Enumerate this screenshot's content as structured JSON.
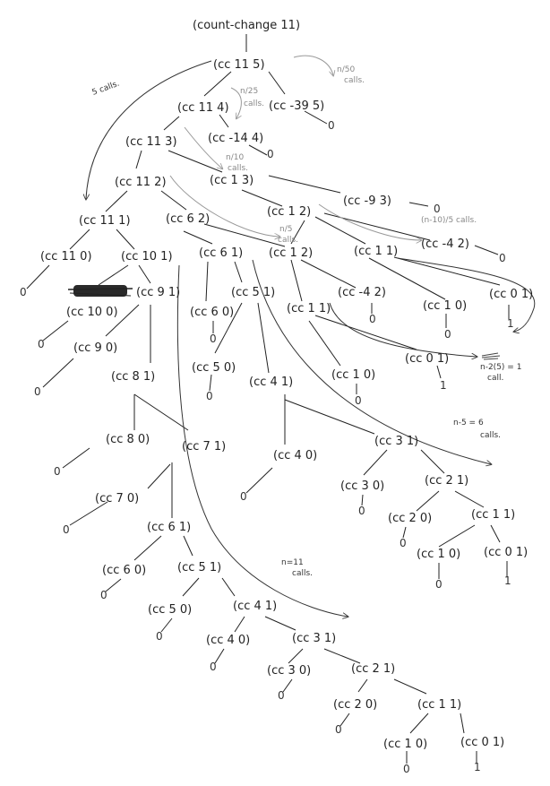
{
  "root": {
    "label": "(count-change 11)"
  },
  "nodes": {
    "cc_11_5": "(cc 11 5)",
    "cc_11_4": "(cc 11 4)",
    "cc_m39_5": "(cc -39 5)",
    "cc_11_3": "(cc 11 3)",
    "cc_m14_4": "(cc -14 4)",
    "cc_11_2": "(cc 11 2)",
    "cc_1_3": "(cc 1 3)",
    "cc_m9_3": "(cc -9 3)",
    "cc_11_1": "(cc 11 1)",
    "cc_6_2": "(cc 6 2)",
    "cc_1_2_a": "(cc 1 2)",
    "cc_11_0": "(cc 11 0)",
    "cc_10_1": "(cc 10 1)",
    "cc_6_1": "(cc 6 1)",
    "cc_1_2_b": "(cc 1 2)",
    "cc_1_1_a": "(cc 1 1)",
    "cc_m4_2_a": "(cc -4 2)",
    "cc_10_0": "(cc 10 0)",
    "cc_9_1": "(cc 9 1)",
    "cc_6_0": "(cc 6 0)",
    "cc_5_1_a": "(cc 5 1)",
    "cc_1_1_b": "(cc 1 1)",
    "cc_m4_2_b": "(cc -4 2)",
    "cc_1_0_a": "(cc 1 0)",
    "cc_0_1_a": "(cc 0 1)",
    "cc_9_0": "(cc 9 0)",
    "cc_5_0_a": "(cc 5 0)",
    "cc_4_1_a": "(cc 4 1)",
    "cc_1_0_b": "(cc 1 0)",
    "cc_0_1_b": "(cc 0 1)",
    "cc_8_1": "(cc 8 1)",
    "cc_8_0": "(cc 8 0)",
    "cc_7_1": "(cc 7 1)",
    "cc_4_0_a": "(cc 4 0)",
    "cc_3_1_a": "(cc 3 1)",
    "cc_3_0_a": "(cc 3 0)",
    "cc_2_1_a": "(cc 2 1)",
    "cc_7_0": "(cc 7 0)",
    "cc_2_0_a": "(cc 2 0)",
    "cc_1_1_c": "(cc 1 1)",
    "cc_6_1_b": "(cc 6 1)",
    "cc_1_0_c": "(cc 1 0)",
    "cc_0_1_c": "(cc 0 1)",
    "cc_6_0_b": "(cc 6 0)",
    "cc_5_1_b": "(cc 5 1)",
    "cc_5_0_b": "(cc 5 0)",
    "cc_4_1_b": "(cc 4 1)",
    "cc_4_0_b": "(cc 4 0)",
    "cc_3_1_b": "(cc 3 1)",
    "cc_3_0_b": "(cc 3 0)",
    "cc_2_1_b": "(cc 2 1)",
    "cc_2_0_b": "(cc 2 0)",
    "cc_1_1_d": "(cc 1 1)",
    "cc_1_0_d": "(cc 1 0)",
    "cc_0_1_d": "(cc 0 1)"
  },
  "leaves": {
    "zero": "0",
    "one": "1"
  },
  "annotations": {
    "five_calls": "5 calls.",
    "n50_calls_top": "n/50",
    "n50_calls_bottom": "calls.",
    "n25_top": "n/25",
    "n25_bottom": "calls.",
    "n10_top": "n/10",
    "n10_bottom": "calls.",
    "n5_top": "n/5",
    "n5_bottom": "calls.",
    "n_minus_10": "(n-10)/5 calls.",
    "n_minus_2_5": "n-2(5) = 1",
    "n_minus_2_5_calls": "call.",
    "n_minus_5": "n-5 = 6",
    "n_minus_5_calls": "calls.",
    "n_11": "n=11",
    "n_11_calls": "calls."
  }
}
